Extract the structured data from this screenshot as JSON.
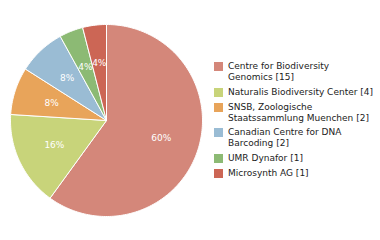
{
  "chart_data": {
    "type": "pie",
    "categories": [
      "Centre for Biodiversity\nGenomics [15]",
      "Naturalis Biodiversity Center [4]",
      "SNSB, Zoologische\nStaatssammlung Muenchen [2]",
      "Canadian Centre for DNA\nBarcoding [2]",
      "UMR Dynafor [1]",
      "Microsynth AG [1]"
    ],
    "values": [
      60,
      16,
      8,
      8,
      4,
      4
    ],
    "value_labels": [
      "60%",
      "16%",
      "8%",
      "8%",
      "4%",
      "4%"
    ],
    "colors": [
      "#d4877a",
      "#c8d47a",
      "#e8a45a",
      "#9abcd4",
      "#8cba74",
      "#cc6655"
    ],
    "data_labels": true,
    "legend": "right"
  }
}
